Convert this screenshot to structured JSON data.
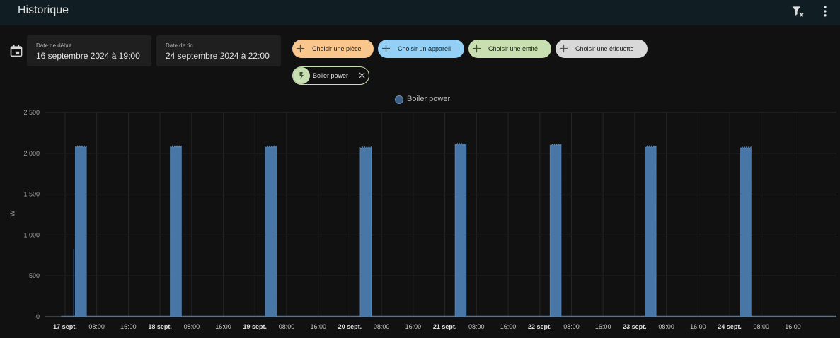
{
  "header": {
    "title": "Historique"
  },
  "date_range": {
    "start": {
      "label": "Date de début",
      "value": "16 septembre 2024 à 19:00"
    },
    "end": {
      "label": "Date de fin",
      "value": "24 septembre 2024 à 22:00"
    }
  },
  "chips": [
    {
      "label": "Choisir une pièce",
      "color": "#f9c68e"
    },
    {
      "label": "Choisir un appareil",
      "color": "#94d0f5"
    },
    {
      "label": "Choisir une entité",
      "color": "#c8dfb1"
    },
    {
      "label": "Choisir une étiquette",
      "color": "#d8d8d8"
    }
  ],
  "selected_entity": {
    "label": "Boiler power"
  },
  "chart_data": {
    "type": "area",
    "legend": [
      "Boiler power"
    ],
    "legend_position": "top-center",
    "ylabel": "W",
    "ylim": [
      0,
      2500
    ],
    "yticks": [
      {
        "value": 0,
        "label": "0"
      },
      {
        "value": 500,
        "label": "500"
      },
      {
        "value": 1000,
        "label": "1 000"
      },
      {
        "value": 1500,
        "label": "1 500"
      },
      {
        "value": 2000,
        "label": "2 000"
      },
      {
        "value": 2500,
        "label": "2 500"
      }
    ],
    "xrange_hours": [
      -5,
      195
    ],
    "xticks": [
      {
        "h": 0,
        "label": "17 sept.",
        "bold": true
      },
      {
        "h": 8,
        "label": "08:00"
      },
      {
        "h": 16,
        "label": "16:00"
      },
      {
        "h": 24,
        "label": "18 sept.",
        "bold": true
      },
      {
        "h": 32,
        "label": "08:00"
      },
      {
        "h": 40,
        "label": "16:00"
      },
      {
        "h": 48,
        "label": "19 sept.",
        "bold": true
      },
      {
        "h": 56,
        "label": "08:00"
      },
      {
        "h": 64,
        "label": "16:00"
      },
      {
        "h": 72,
        "label": "20 sept.",
        "bold": true
      },
      {
        "h": 80,
        "label": "08:00"
      },
      {
        "h": 88,
        "label": "16:00"
      },
      {
        "h": 96,
        "label": "21 sept.",
        "bold": true
      },
      {
        "h": 104,
        "label": "08:00"
      },
      {
        "h": 112,
        "label": "16:00"
      },
      {
        "h": 120,
        "label": "22 sept.",
        "bold": true
      },
      {
        "h": 128,
        "label": "08:00"
      },
      {
        "h": 136,
        "label": "16:00"
      },
      {
        "h": 144,
        "label": "23 sept.",
        "bold": true
      },
      {
        "h": 152,
        "label": "08:00"
      },
      {
        "h": 160,
        "label": "16:00"
      },
      {
        "h": 168,
        "label": "24 sept.",
        "bold": true
      },
      {
        "h": 176,
        "label": "08:00"
      },
      {
        "h": 184,
        "label": "16:00"
      }
    ],
    "series": [
      {
        "name": "Boiler power",
        "color": "#4876a6",
        "spikes": [
          {
            "start": 2.6,
            "end": 5.4,
            "value": 2080
          },
          {
            "start": 26.6,
            "end": 29.4,
            "value": 2080
          },
          {
            "start": 50.6,
            "end": 53.4,
            "value": 2080
          },
          {
            "start": 74.6,
            "end": 77.4,
            "value": 2070
          },
          {
            "start": 98.6,
            "end": 101.4,
            "value": 2110
          },
          {
            "start": 122.6,
            "end": 125.4,
            "value": 2100
          },
          {
            "start": 146.6,
            "end": 149.4,
            "value": 2080
          },
          {
            "start": 170.6,
            "end": 173.4,
            "value": 2070
          }
        ],
        "blips": [
          {
            "h": 2.2,
            "value": 830
          }
        ]
      }
    ]
  }
}
